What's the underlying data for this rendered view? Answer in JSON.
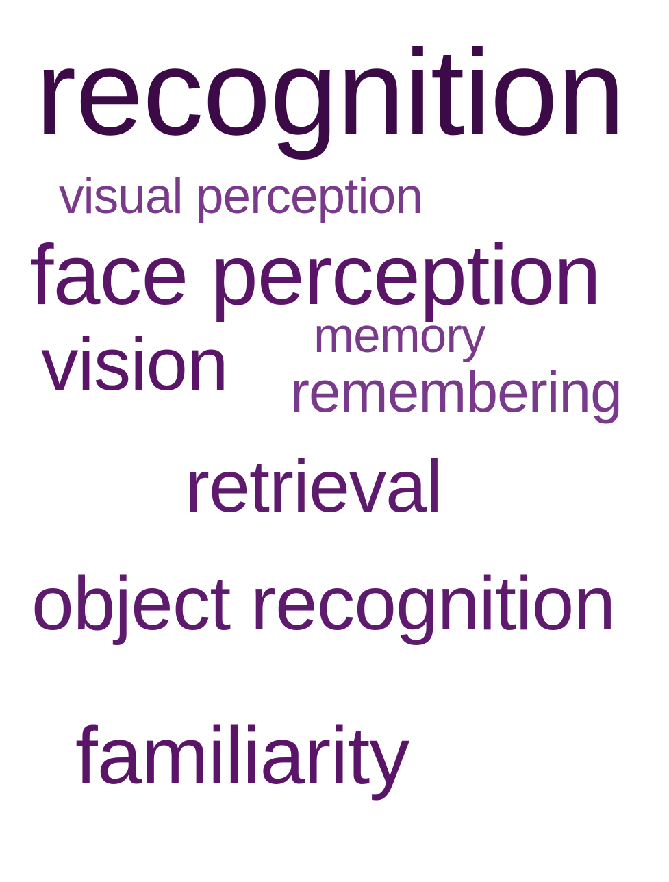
{
  "words": [
    {
      "id": "w-recognition",
      "text": "recognition",
      "color": "#3b0a47"
    },
    {
      "id": "w-visual",
      "text": "visual perception",
      "color": "#7a3a8c"
    },
    {
      "id": "w-face",
      "text": "face perception",
      "color": "#5a1568"
    },
    {
      "id": "w-memory",
      "text": "memory",
      "color": "#7a3a8c"
    },
    {
      "id": "w-vision",
      "text": "vision",
      "color": "#5a1568"
    },
    {
      "id": "w-remembering",
      "text": "remembering",
      "color": "#7a3a8c"
    },
    {
      "id": "w-retrieval",
      "text": "retrieval",
      "color": "#5e1a6c"
    },
    {
      "id": "w-object",
      "text": "object recognition",
      "color": "#5e1a6c"
    },
    {
      "id": "w-familiarity",
      "text": "familiarity",
      "color": "#5a1568"
    }
  ]
}
